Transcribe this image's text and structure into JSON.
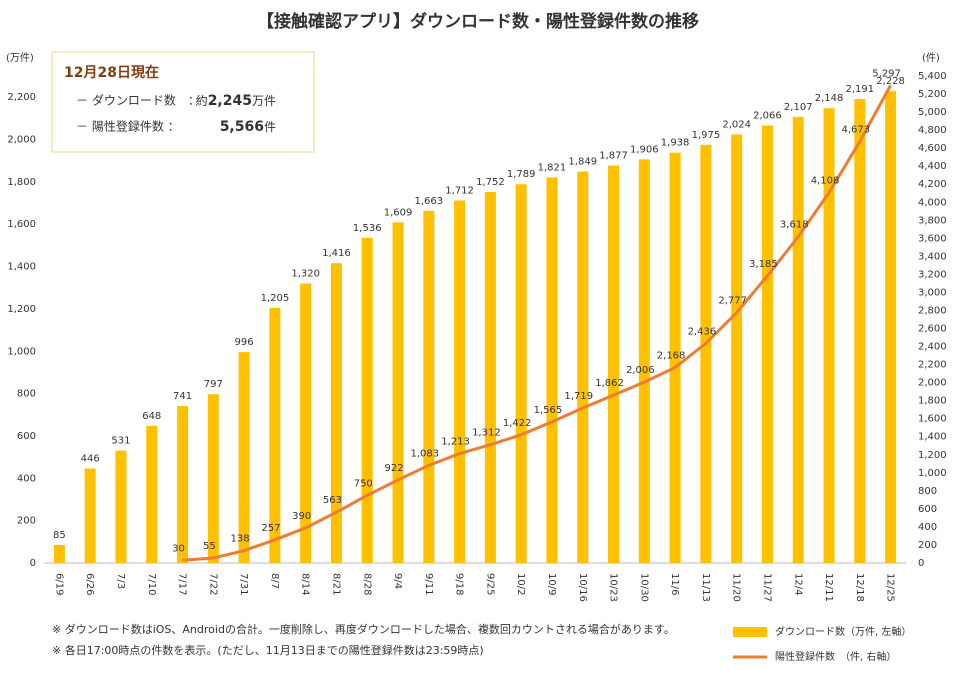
{
  "chart_data": {
    "type": "bar_line",
    "title": "【接触確認アプリ】ダウンロード数・陽性登録件数の推移",
    "y_label": "(万件)",
    "y2_label": "(件)",
    "categories": [
      "6/19",
      "6/26",
      "7/3",
      "7/10",
      "7/17",
      "7/22",
      "7/31",
      "8/7",
      "8/14",
      "8/21",
      "8/28",
      "9/4",
      "9/11",
      "9/18",
      "9/25",
      "10/2",
      "10/9",
      "10/16",
      "10/23",
      "10/30",
      "11/6",
      "11/13",
      "11/20",
      "11/27",
      "12/4",
      "12/11",
      "12/18",
      "12/25"
    ],
    "series": [
      {
        "name": "ダウンロード数（万件, 左軸）",
        "type": "bar",
        "color": "#FFC000",
        "values": [
          85,
          446,
          531,
          648,
          741,
          797,
          996,
          1205,
          1320,
          1416,
          1536,
          1609,
          1663,
          1712,
          1752,
          1789,
          1821,
          1849,
          1877,
          1906,
          1938,
          1975,
          2024,
          2066,
          2107,
          2148,
          2191,
          2228
        ],
        "value_labels": [
          "85",
          "446",
          "531",
          "648",
          "741",
          "797",
          "996",
          "1,205",
          "1,320",
          "1,416",
          "1,536",
          "1,609",
          "1,663",
          "1,712",
          "1,752",
          "1,789",
          "1,821",
          "1,849",
          "1,877",
          "1,906",
          "1,938",
          "1,975",
          "2,024",
          "2,066",
          "2,107",
          "2,148",
          "2,191",
          "2,228"
        ]
      },
      {
        "name": "陽性登録件数　（件, 右軸）",
        "type": "line",
        "axis": "y2",
        "color": "#ED7D31",
        "values": [
          null,
          null,
          null,
          null,
          30,
          55,
          138,
          257,
          390,
          563,
          750,
          922,
          1083,
          1213,
          1312,
          1422,
          1565,
          1719,
          1862,
          2006,
          2168,
          2436,
          2777,
          3185,
          3618,
          4108,
          4673,
          5297
        ],
        "value_labels": [
          null,
          null,
          null,
          null,
          "30",
          "55",
          "138",
          "257",
          "390",
          "563",
          "750",
          "922",
          "1,083",
          "1,213",
          "1,312",
          "1,422",
          "1,565",
          "1,719",
          "1,862",
          "2,006",
          "2,168",
          "2,436",
          "2,777",
          "3,185",
          "3,618",
          "4,108",
          "4,673",
          "5,297"
        ]
      }
    ],
    "ylim": [
      0,
      2300
    ],
    "yticks": [
      0,
      200,
      400,
      600,
      800,
      {
        "value": 1000,
        "label": "1,000"
      },
      {
        "value": 1200,
        "label": "1,200"
      },
      {
        "value": 1400,
        "label": "1,400"
      },
      {
        "value": 1600,
        "label": "1,600"
      },
      {
        "value": 1800,
        "label": "1,800"
      },
      {
        "value": 2000,
        "label": "2,000"
      },
      {
        "value": 2200,
        "label": "2,200"
      }
    ],
    "y2lim": [
      0,
      5400
    ],
    "y2ticks": [
      0,
      200,
      400,
      600,
      800,
      {
        "value": 1000,
        "label": "1,000"
      },
      {
        "value": 1200,
        "label": "1,200"
      },
      {
        "value": 1400,
        "label": "1,400"
      },
      {
        "value": 1600,
        "label": "1,600"
      },
      {
        "value": 1800,
        "label": "1,800"
      },
      {
        "value": 2000,
        "label": "2,000"
      },
      {
        "value": 2200,
        "label": "2,200"
      },
      {
        "value": 2400,
        "label": "2,400"
      },
      {
        "value": 2600,
        "label": "2,600"
      },
      {
        "value": 2800,
        "label": "2,800"
      },
      {
        "value": 3000,
        "label": "3,000"
      },
      {
        "value": 3200,
        "label": "3,200"
      },
      {
        "value": 3400,
        "label": "3,400"
      },
      {
        "value": 3600,
        "label": "3,600"
      },
      {
        "value": 3800,
        "label": "3,800"
      },
      {
        "value": 4000,
        "label": "4,000"
      },
      {
        "value": 4200,
        "label": "4,200"
      },
      {
        "value": 4400,
        "label": "4,400"
      },
      {
        "value": 4600,
        "label": "4,600"
      },
      {
        "value": 4800,
        "label": "4,800"
      },
      {
        "value": 5000,
        "label": "5,000"
      },
      {
        "value": 5200,
        "label": "5,200"
      },
      {
        "value": 5400,
        "label": "5,400"
      }
    ],
    "grid": false,
    "info_box": {
      "title": "12月28日現在",
      "items": [
        {
          "label": "－ ダウンロード数　：",
          "prefix": "約",
          "value": "2,245",
          "unit": "万件"
        },
        {
          "label": "－ 陽性登録件数 ：",
          "value": "5,566",
          "unit": "件"
        }
      ]
    },
    "notes": [
      "※ ダウンロード数はiOS、Androidの合計。一度削除し、再度ダウンロードした場合、複数回カウントされる場合があります。",
      "※ 各日17:00時点の件数を表示。(ただし、11月13日までの陽性登録件数は23:59時点)"
    ]
  }
}
